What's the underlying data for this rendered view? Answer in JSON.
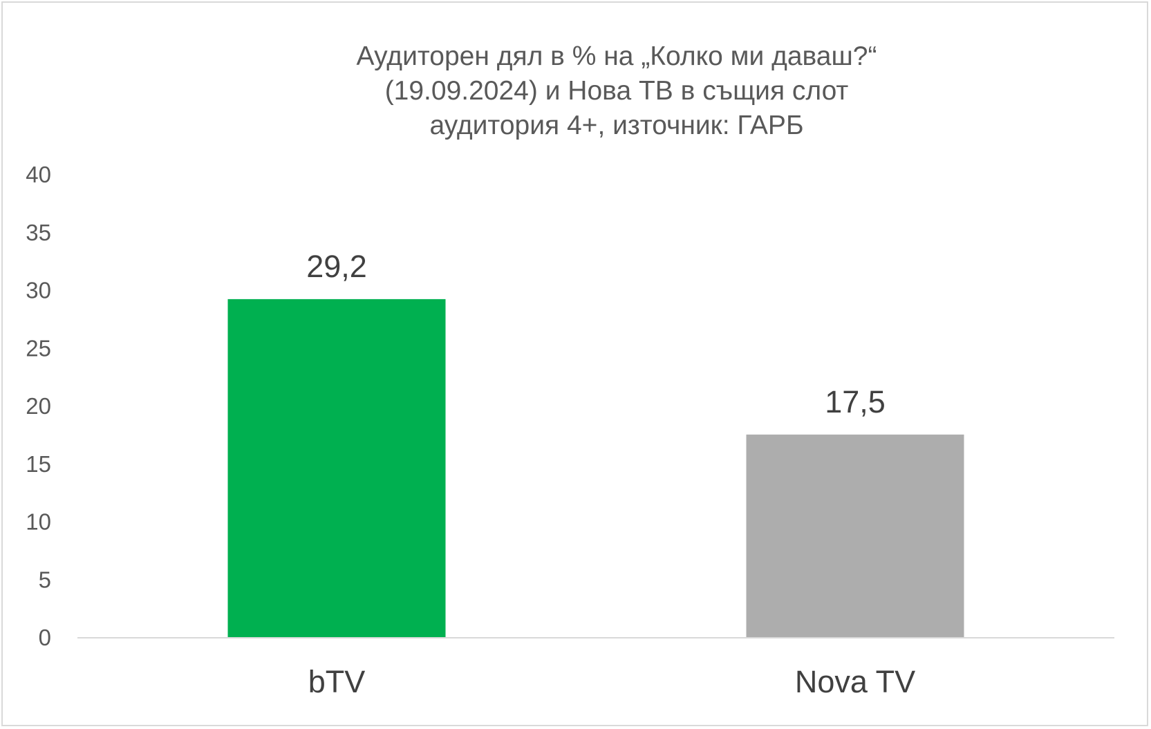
{
  "chart_data": {
    "type": "bar",
    "title_lines": [
      "Аудиторен дял в % на „Колко ми даваш?“",
      "(19.09.2024) и Нова ТВ в същия слот",
      "аудитория 4+, източник: ГАРБ"
    ],
    "categories": [
      "bTV",
      "Nova TV"
    ],
    "values": [
      29.2,
      17.5
    ],
    "data_labels": [
      "29,2",
      "17,5"
    ],
    "bar_colors": [
      "#00b050",
      "#adadad"
    ],
    "ylim": [
      0,
      40
    ],
    "yticks": [
      0,
      5,
      10,
      15,
      20,
      25,
      30,
      35,
      40
    ],
    "ytick_labels": [
      "0",
      "5",
      "10",
      "15",
      "20",
      "25",
      "30",
      "35",
      "40"
    ],
    "grid": false,
    "legend": "none",
    "xlabel": "",
    "ylabel": ""
  }
}
